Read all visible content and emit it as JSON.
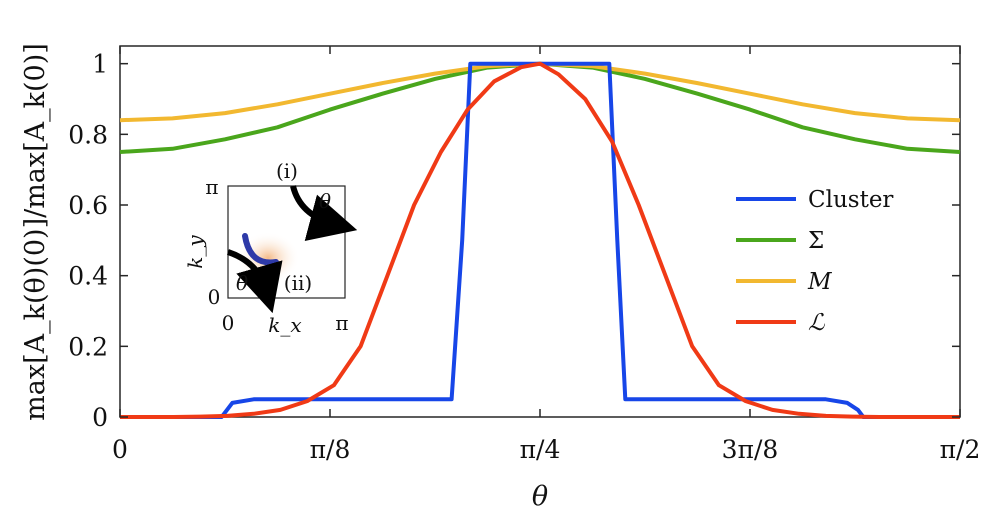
{
  "chart_data": {
    "type": "line",
    "xlabel": "θ",
    "ylabel": "max[A_k(θ)(0)]/max[A_k(0)]",
    "xlim": [
      0,
      1.5708
    ],
    "ylim": [
      0,
      1.05
    ],
    "xticks": [
      0,
      0.3927,
      0.7854,
      1.1781,
      1.5708
    ],
    "xtick_labels": [
      "0",
      "π/8",
      "π/4",
      "3π/8",
      "π/2"
    ],
    "yticks": [
      0,
      0.2,
      0.4,
      0.6,
      0.8,
      1
    ],
    "ytick_labels": [
      "0",
      "0.2",
      "0.4",
      "0.6",
      "0.8",
      "1"
    ],
    "grid": false,
    "legend_position": "right",
    "series": [
      {
        "name": "Cluster",
        "color": "#1746e8",
        "x": [
          0,
          0.19,
          0.2,
          0.21,
          0.25,
          0.62,
          0.64,
          0.655,
          0.915,
          0.93,
          0.945,
          1.32,
          1.36,
          1.38,
          1.39,
          1.5708
        ],
        "y": [
          0,
          0,
          0.02,
          0.04,
          0.05,
          0.05,
          0.5,
          1.0,
          1.0,
          0.5,
          0.05,
          0.05,
          0.04,
          0.02,
          0,
          0
        ]
      },
      {
        "name": "Σ",
        "color": "#4aa61c",
        "x": [
          0,
          0.0982,
          0.1963,
          0.2945,
          0.3927,
          0.4909,
          0.589,
          0.6872,
          0.7854,
          0.8836,
          0.9817,
          1.0799,
          1.1781,
          1.2763,
          1.3744,
          1.4726,
          1.5708
        ],
        "y": [
          0.75,
          0.759,
          0.786,
          0.82,
          0.87,
          0.915,
          0.957,
          0.989,
          1.0,
          0.989,
          0.957,
          0.915,
          0.87,
          0.82,
          0.786,
          0.759,
          0.75
        ]
      },
      {
        "name": "M",
        "color": "#f2b830",
        "x": [
          0,
          0.0982,
          0.1963,
          0.2945,
          0.3927,
          0.4909,
          0.589,
          0.6872,
          0.7854,
          0.8836,
          0.9817,
          1.0799,
          1.1781,
          1.2763,
          1.3744,
          1.4726,
          1.5708
        ],
        "y": [
          0.84,
          0.845,
          0.86,
          0.885,
          0.915,
          0.945,
          0.972,
          0.993,
          1.0,
          0.993,
          0.972,
          0.945,
          0.915,
          0.885,
          0.86,
          0.845,
          0.84
        ]
      },
      {
        "name": "ℒ",
        "color": "#f03a16",
        "x": [
          0,
          0.1,
          0.15,
          0.2,
          0.25,
          0.3,
          0.35,
          0.4,
          0.45,
          0.5,
          0.55,
          0.6,
          0.65,
          0.7,
          0.75,
          0.7854,
          0.82,
          0.87,
          0.92,
          0.97,
          1.02,
          1.07,
          1.12,
          1.17,
          1.22,
          1.27,
          1.32,
          1.37,
          1.42,
          1.47,
          1.5708
        ],
        "y": [
          0.0,
          0.0,
          0.001,
          0.003,
          0.009,
          0.02,
          0.045,
          0.09,
          0.2,
          0.4,
          0.6,
          0.75,
          0.87,
          0.95,
          0.99,
          1.0,
          0.97,
          0.9,
          0.78,
          0.6,
          0.4,
          0.2,
          0.09,
          0.045,
          0.02,
          0.009,
          0.003,
          0.001,
          0.0,
          0.0,
          0.0
        ]
      }
    ],
    "inset": {
      "xlabel": "k_x",
      "ylabel": "k_y",
      "xtick_labels": [
        "0",
        "π"
      ],
      "ytick_labels": [
        "0",
        "π"
      ],
      "annotations": [
        "(i)",
        "(ii)",
        "θ",
        "θ"
      ]
    }
  }
}
